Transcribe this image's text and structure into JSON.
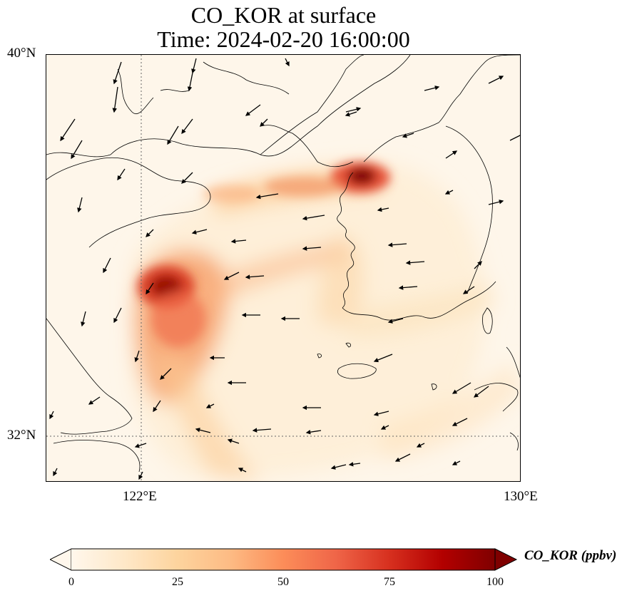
{
  "title": {
    "line1": "CO_KOR at surface",
    "line2": "Time: 2024-02-20 16:00:00"
  },
  "axes": {
    "lat_labels": [
      "40°N",
      "32°N"
    ],
    "lon_labels": [
      "122°E",
      "130°E"
    ]
  },
  "colorbar": {
    "label": "CO_KOR (ppbv)",
    "ticks": [
      "0",
      "25",
      "50",
      "75",
      "100"
    ],
    "range": [
      0,
      100
    ],
    "extend": "both",
    "colormap": "OrRd",
    "colors": [
      "#fff7ec",
      "#fee8c8",
      "#fdd49e",
      "#fdbb84",
      "#fc8d59",
      "#ef6548",
      "#d7301f",
      "#b30000",
      "#7f0000"
    ]
  },
  "map": {
    "background_color": "#fef6ea",
    "coastline_color": "#000000",
    "gridline_style": "dotted",
    "wind_vectors": "shown"
  }
}
